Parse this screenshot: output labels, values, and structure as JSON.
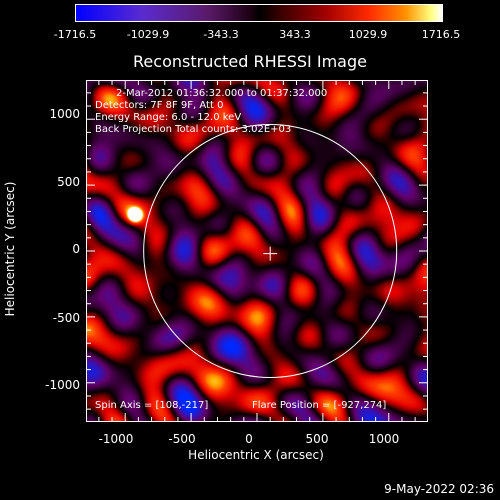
{
  "colorbar": {
    "ticks": [
      "-1716.5",
      "-1029.9",
      "-343.3",
      "343.3",
      "1029.9",
      "1716.5"
    ],
    "range": [
      -1716.5,
      1716.5
    ]
  },
  "chart_data": {
    "type": "heatmap",
    "title": "Reconstructed RHESSI Image",
    "xlabel": "Heliocentric X (arcsec)",
    "ylabel": "Heliocentric Y (arcsec)",
    "xlim": [
      -1290,
      1290
    ],
    "ylim": [
      -1290,
      1290
    ],
    "x_ticks": [
      "-1000",
      "-500",
      "0",
      "500",
      "1000"
    ],
    "y_ticks": [
      "1000",
      "500",
      "0",
      "-500",
      "-1000"
    ],
    "solar_limb_radius": 960,
    "sun_center_marker": [
      100,
      -180
    ],
    "bright_source": [
      -927,
      274
    ],
    "colormap": [
      "#0000ff",
      "#5a1a6a",
      "#000000",
      "#a00000",
      "#ff2a00",
      "#ffff80",
      "#ffffff"
    ]
  },
  "info": {
    "line1": "2-Mar-2012 01:36:32.000 to 01:37:32.000",
    "line2": "Detectors: 7F 8F 9F, Att 0",
    "line3": "Energy Range: 6.0 - 12.0 keV",
    "line4": "Back Projection    Total counts: 3.02E+03",
    "spin_axis": "Spin Axis = [108,-217]",
    "flare_position": "Flare Position = [-927,274]"
  },
  "timestamp": "9-May-2022 02:36"
}
